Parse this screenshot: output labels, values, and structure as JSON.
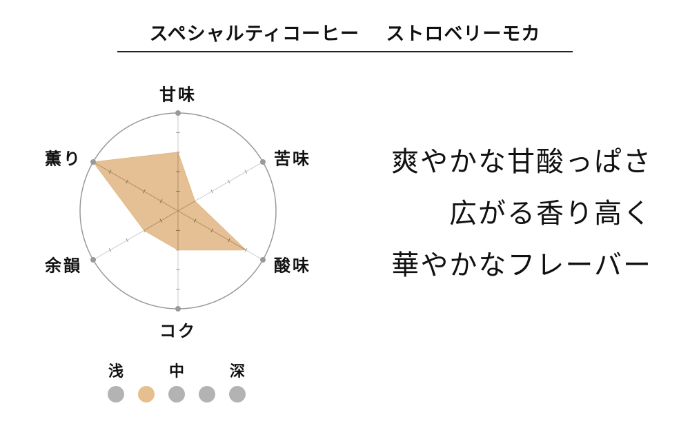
{
  "title": "スペシャルティコーヒー　 ストロベリーモカ",
  "chart_data": {
    "type": "radar",
    "axes": [
      "甘味",
      "苦味",
      "酸味",
      "コク",
      "余韻",
      "薫り"
    ],
    "values": [
      3,
      1,
      4,
      2,
      2,
      5
    ],
    "rmax": 5,
    "fill_color": "#e2b988",
    "grid_color": "#aaaaaa"
  },
  "roast": {
    "labels": [
      "浅",
      "中",
      "深"
    ],
    "levels": 5,
    "selected": 2,
    "active_color": "#e6bf8f",
    "inactive_color": "#b3b3b3"
  },
  "copy": [
    "爽やかな甘酸っぱさ",
    "広がる香り高く",
    "華やかなフレーバー"
  ]
}
